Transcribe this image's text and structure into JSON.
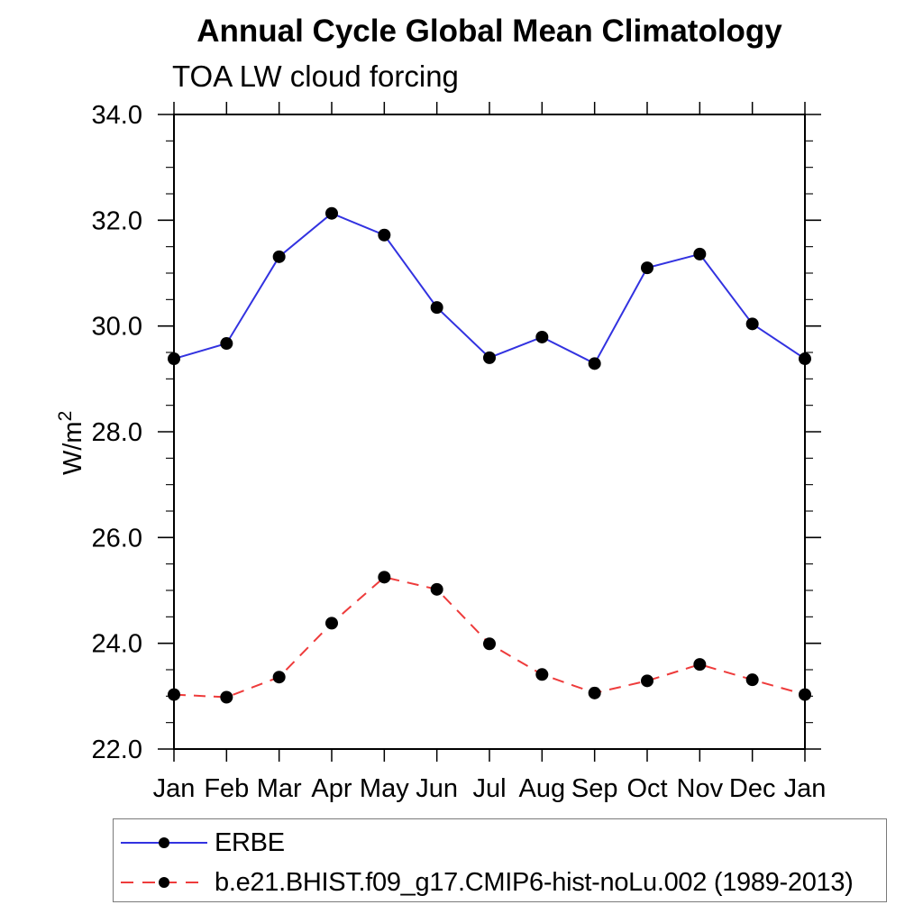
{
  "chart_data": {
    "type": "line",
    "title": "Annual Cycle Global Mean Climatology",
    "subtitle": "TOA LW cloud forcing",
    "categories": [
      "Jan",
      "Feb",
      "Mar",
      "Apr",
      "May",
      "Jun",
      "Jul",
      "Aug",
      "Sep",
      "Oct",
      "Nov",
      "Dec",
      "Jan"
    ],
    "series": [
      {
        "name": "ERBE",
        "color": "#3232e0",
        "line_style": "solid",
        "marker": "black-circle",
        "values": [
          29.38,
          29.67,
          31.31,
          32.13,
          31.72,
          30.35,
          29.4,
          29.79,
          29.29,
          31.1,
          31.36,
          30.04,
          29.38
        ]
      },
      {
        "name": "b.e21.BHIST.f09_g17.CMIP6-hist-noLu.002 (1989-2013)",
        "color": "#ee3b3b",
        "line_style": "dashed",
        "marker": "black-circle",
        "values": [
          23.03,
          22.98,
          23.36,
          24.38,
          25.25,
          25.02,
          23.99,
          23.41,
          23.06,
          23.29,
          23.6,
          23.31,
          23.03
        ]
      }
    ],
    "xlabel": "",
    "ylabel": "W/m^2",
    "ylabel_base": "W/m",
    "ylabel_exp": "2",
    "ylim": [
      22.0,
      34.0
    ],
    "ytick_step": 2.0,
    "ytick_minor_step": 0.5,
    "ytick_labels": [
      "22.0",
      "24.0",
      "26.0",
      "28.0",
      "30.0",
      "32.0",
      "34.0"
    ],
    "grid": false,
    "legend_position": "bottom-left",
    "marker_color": "#000000",
    "axis_color": "#000000"
  }
}
